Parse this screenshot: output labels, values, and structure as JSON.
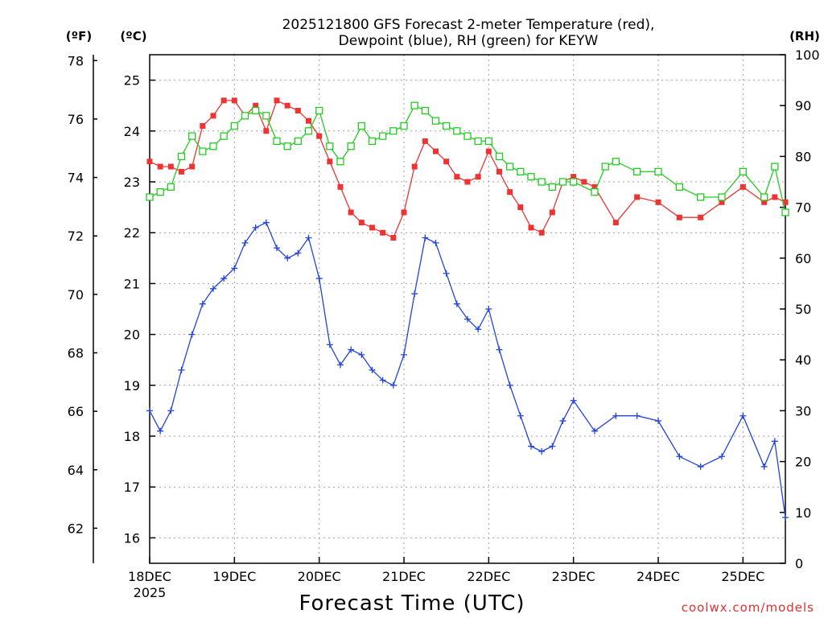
{
  "page": {
    "title_line1": "2025121800 GFS Forecast 2-meter Temperature (red),",
    "title_line2": "Dewpoint (blue), RH (green) for KEYW",
    "x_axis_label": "Forecast Time (UTC)",
    "credit": "coolwx.com/models",
    "unit_f": "(ºF)",
    "unit_c": "(ºC)",
    "unit_rh": "(RH)"
  },
  "chart_data": {
    "type": "line",
    "title": "2025121800 GFS Forecast 2-meter Temperature (red), Dewpoint (blue), RH (green) for KEYW",
    "xlabel": "Forecast Time (UTC)",
    "x_units": "days since 18DEC2025 00Z",
    "xlim": [
      0,
      7.5
    ],
    "x_ticks": [
      {
        "x": 0,
        "label": "18DEC"
      },
      {
        "x": 1,
        "label": "19DEC"
      },
      {
        "x": 2,
        "label": "20DEC"
      },
      {
        "x": 3,
        "label": "21DEC"
      },
      {
        "x": 4,
        "label": "22DEC"
      },
      {
        "x": 5,
        "label": "23DEC"
      },
      {
        "x": 6,
        "label": "24DEC"
      },
      {
        "x": 7,
        "label": "25DEC"
      }
    ],
    "x_subtitle": "2025",
    "y_left_celsius": {
      "label": "(ºC)",
      "lim": [
        15.5,
        25.5
      ],
      "ticks": [
        16,
        17,
        18,
        19,
        20,
        21,
        22,
        23,
        24,
        25
      ]
    },
    "y_left_fahrenheit": {
      "label": "(ºF)",
      "lim": [
        60.8,
        78.2
      ],
      "ticks": [
        62,
        64,
        66,
        68,
        70,
        72,
        74,
        76,
        78
      ]
    },
    "y_right_rh": {
      "label": "(RH)",
      "lim": [
        0,
        100
      ],
      "ticks": [
        0,
        10,
        20,
        30,
        40,
        50,
        60,
        70,
        80,
        90,
        100
      ]
    },
    "grid": true,
    "series": [
      {
        "name": "2-meter Temperature",
        "axis": "celsius",
        "color": "#ee3333",
        "marker": "filled-square",
        "points": [
          [
            0.0,
            23.4
          ],
          [
            0.125,
            23.3
          ],
          [
            0.25,
            23.3
          ],
          [
            0.375,
            23.2
          ],
          [
            0.5,
            23.3
          ],
          [
            0.625,
            24.1
          ],
          [
            0.75,
            24.3
          ],
          [
            0.875,
            24.6
          ],
          [
            1.0,
            24.6
          ],
          [
            1.125,
            24.3
          ],
          [
            1.25,
            24.5
          ],
          [
            1.375,
            24.0
          ],
          [
            1.5,
            24.6
          ],
          [
            1.625,
            24.5
          ],
          [
            1.75,
            24.4
          ],
          [
            1.875,
            24.2
          ],
          [
            2.0,
            23.9
          ],
          [
            2.125,
            23.4
          ],
          [
            2.25,
            22.9
          ],
          [
            2.375,
            22.4
          ],
          [
            2.5,
            22.2
          ],
          [
            2.625,
            22.1
          ],
          [
            2.75,
            22.0
          ],
          [
            2.875,
            21.9
          ],
          [
            3.0,
            22.4
          ],
          [
            3.125,
            23.3
          ],
          [
            3.25,
            23.8
          ],
          [
            3.375,
            23.6
          ],
          [
            3.5,
            23.4
          ],
          [
            3.625,
            23.1
          ],
          [
            3.75,
            23.0
          ],
          [
            3.875,
            23.1
          ],
          [
            4.0,
            23.6
          ],
          [
            4.125,
            23.2
          ],
          [
            4.25,
            22.8
          ],
          [
            4.375,
            22.5
          ],
          [
            4.5,
            22.1
          ],
          [
            4.625,
            22.0
          ],
          [
            4.75,
            22.4
          ],
          [
            4.875,
            23.0
          ],
          [
            5.0,
            23.1
          ],
          [
            5.125,
            23.0
          ],
          [
            5.25,
            22.9
          ],
          [
            5.5,
            22.2
          ],
          [
            5.75,
            22.7
          ],
          [
            6.0,
            22.6
          ],
          [
            6.25,
            22.3
          ],
          [
            6.5,
            22.3
          ],
          [
            6.75,
            22.6
          ],
          [
            7.0,
            22.9
          ],
          [
            7.25,
            22.6
          ],
          [
            7.375,
            22.7
          ],
          [
            7.5,
            22.6
          ]
        ]
      },
      {
        "name": "Dewpoint",
        "axis": "celsius",
        "color": "#2244dd",
        "marker": "plus",
        "points": [
          [
            0.0,
            18.5
          ],
          [
            0.125,
            18.1
          ],
          [
            0.25,
            18.5
          ],
          [
            0.375,
            19.3
          ],
          [
            0.5,
            20.0
          ],
          [
            0.625,
            20.6
          ],
          [
            0.75,
            20.9
          ],
          [
            0.875,
            21.1
          ],
          [
            1.0,
            21.3
          ],
          [
            1.125,
            21.8
          ],
          [
            1.25,
            22.1
          ],
          [
            1.375,
            22.2
          ],
          [
            1.5,
            21.7
          ],
          [
            1.625,
            21.5
          ],
          [
            1.75,
            21.6
          ],
          [
            1.875,
            21.9
          ],
          [
            2.0,
            21.1
          ],
          [
            2.125,
            19.8
          ],
          [
            2.25,
            19.4
          ],
          [
            2.375,
            19.7
          ],
          [
            2.5,
            19.6
          ],
          [
            2.625,
            19.3
          ],
          [
            2.75,
            19.1
          ],
          [
            2.875,
            19.0
          ],
          [
            3.0,
            19.6
          ],
          [
            3.125,
            20.8
          ],
          [
            3.25,
            21.9
          ],
          [
            3.375,
            21.8
          ],
          [
            3.5,
            21.2
          ],
          [
            3.625,
            20.6
          ],
          [
            3.75,
            20.3
          ],
          [
            3.875,
            20.1
          ],
          [
            4.0,
            20.5
          ],
          [
            4.125,
            19.7
          ],
          [
            4.25,
            19.0
          ],
          [
            4.375,
            18.4
          ],
          [
            4.5,
            17.8
          ],
          [
            4.625,
            17.7
          ],
          [
            4.75,
            17.8
          ],
          [
            4.875,
            18.3
          ],
          [
            5.0,
            18.7
          ],
          [
            5.25,
            18.1
          ],
          [
            5.5,
            18.4
          ],
          [
            5.75,
            18.4
          ],
          [
            6.0,
            18.3
          ],
          [
            6.25,
            17.6
          ],
          [
            6.5,
            17.4
          ],
          [
            6.75,
            17.6
          ],
          [
            7.0,
            18.4
          ],
          [
            7.25,
            17.4
          ],
          [
            7.375,
            17.9
          ],
          [
            7.5,
            16.4
          ]
        ]
      },
      {
        "name": "Relative Humidity",
        "axis": "rh",
        "color": "#22cc22",
        "marker": "open-square",
        "points": [
          [
            0.0,
            72
          ],
          [
            0.125,
            73
          ],
          [
            0.25,
            74
          ],
          [
            0.375,
            80
          ],
          [
            0.5,
            84
          ],
          [
            0.625,
            81
          ],
          [
            0.75,
            82
          ],
          [
            0.875,
            84
          ],
          [
            1.0,
            86
          ],
          [
            1.125,
            88
          ],
          [
            1.25,
            89
          ],
          [
            1.375,
            88
          ],
          [
            1.5,
            83
          ],
          [
            1.625,
            82
          ],
          [
            1.75,
            83
          ],
          [
            1.875,
            85
          ],
          [
            2.0,
            89
          ],
          [
            2.125,
            82
          ],
          [
            2.25,
            79
          ],
          [
            2.375,
            82
          ],
          [
            2.5,
            86
          ],
          [
            2.625,
            83
          ],
          [
            2.75,
            84
          ],
          [
            2.875,
            85
          ],
          [
            3.0,
            86
          ],
          [
            3.125,
            90
          ],
          [
            3.25,
            89
          ],
          [
            3.375,
            87
          ],
          [
            3.5,
            86
          ],
          [
            3.625,
            85
          ],
          [
            3.75,
            84
          ],
          [
            3.875,
            83
          ],
          [
            4.0,
            83
          ],
          [
            4.125,
            80
          ],
          [
            4.25,
            78
          ],
          [
            4.375,
            77
          ],
          [
            4.5,
            76
          ],
          [
            4.625,
            75
          ],
          [
            4.75,
            74
          ],
          [
            4.875,
            75
          ],
          [
            5.0,
            75
          ],
          [
            5.25,
            73
          ],
          [
            5.375,
            78
          ],
          [
            5.5,
            79
          ],
          [
            5.75,
            77
          ],
          [
            6.0,
            77
          ],
          [
            6.25,
            74
          ],
          [
            6.5,
            72
          ],
          [
            6.75,
            72
          ],
          [
            7.0,
            77
          ],
          [
            7.25,
            72
          ],
          [
            7.375,
            78
          ],
          [
            7.5,
            69
          ]
        ]
      }
    ]
  }
}
